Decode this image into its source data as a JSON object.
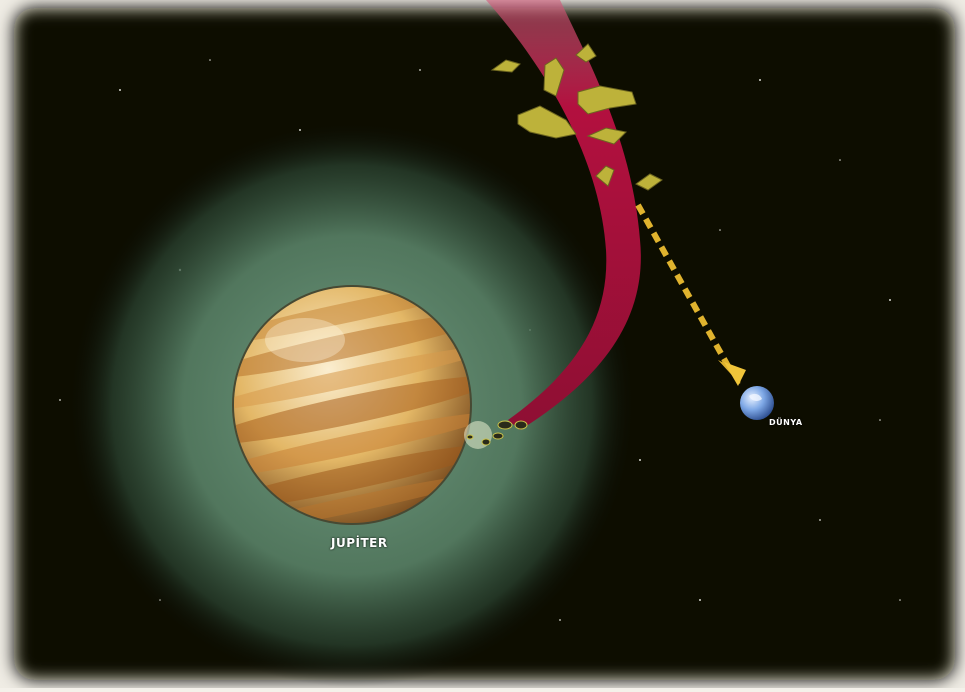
{
  "labels": {
    "jupiter": "JUPİTER",
    "earth": "DÜNYA"
  },
  "colors": {
    "space": "#070705",
    "halo": "#5f8a70",
    "stream": "#b0123e",
    "fragments": "#bdb23a",
    "earth": "#6a9be0"
  }
}
